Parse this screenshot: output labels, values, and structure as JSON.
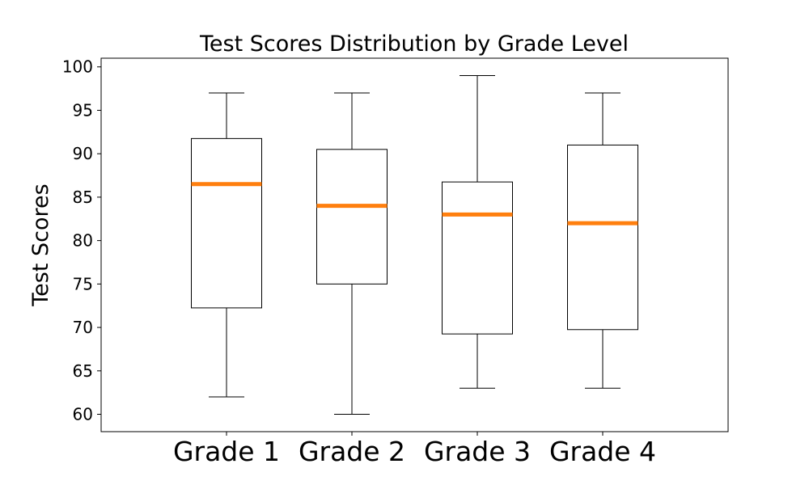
{
  "chart_data": {
    "type": "box",
    "title": "Test Scores Distribution by Grade Level",
    "xlabel": "",
    "ylabel": "Test Scores",
    "ylim": [
      58,
      101
    ],
    "yticks": [
      60,
      65,
      70,
      75,
      80,
      85,
      90,
      95,
      100
    ],
    "grid": false,
    "colors": {
      "box_edge": "#000000",
      "median": "#ff7f0e",
      "whisker": "#000000"
    },
    "categories": [
      "Grade 1",
      "Grade 2",
      "Grade 3",
      "Grade 4"
    ],
    "boxes": [
      {
        "category": "Grade 1",
        "min": 62,
        "q1": 72.25,
        "median": 86.5,
        "q3": 91.75,
        "max": 97
      },
      {
        "category": "Grade 2",
        "min": 60,
        "q1": 75,
        "median": 84,
        "q3": 90.5,
        "max": 97
      },
      {
        "category": "Grade 3",
        "min": 63,
        "q1": 69.25,
        "median": 83,
        "q3": 86.75,
        "max": 99
      },
      {
        "category": "Grade 4",
        "min": 63,
        "q1": 69.75,
        "median": 82,
        "q3": 91,
        "max": 97
      }
    ]
  }
}
